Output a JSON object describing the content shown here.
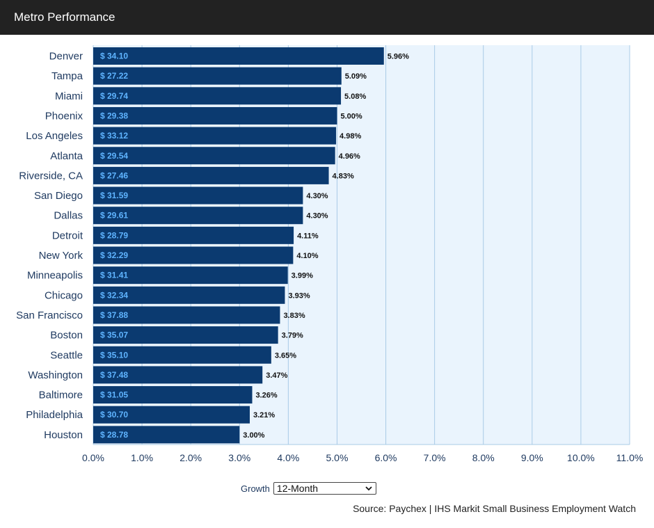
{
  "header": {
    "title": "Metro Performance"
  },
  "controls": {
    "growth_label": "Growth",
    "growth_selected": "12-Month"
  },
  "source": "Source: Paychex | IHS Markit Small Business Employment Watch",
  "colors": {
    "bar": "#0b3a70",
    "bar_label": "#5fb4ff",
    "plot_bg": "#eaf4fd",
    "grid": "#a9cbe6",
    "header_bg": "#222222"
  },
  "chart_data": {
    "type": "bar",
    "orientation": "horizontal",
    "title": "Metro Performance",
    "categories": [
      "Denver",
      "Tampa",
      "Miami",
      "Phoenix",
      "Los Angeles",
      "Atlanta",
      "Riverside, CA",
      "San Diego",
      "Dallas",
      "Detroit",
      "New York",
      "Minneapolis",
      "Chicago",
      "San Francisco",
      "Boston",
      "Seattle",
      "Washington",
      "Baltimore",
      "Philadelphia",
      "Houston"
    ],
    "values": [
      5.96,
      5.09,
      5.08,
      5.0,
      4.98,
      4.96,
      4.83,
      4.3,
      4.3,
      4.11,
      4.1,
      3.99,
      3.93,
      3.83,
      3.79,
      3.65,
      3.47,
      3.26,
      3.21,
      3.0
    ],
    "value_labels": [
      "5.96%",
      "5.09%",
      "5.08%",
      "5.00%",
      "4.98%",
      "4.96%",
      "4.83%",
      "4.30%",
      "4.30%",
      "4.11%",
      "4.10%",
      "3.99%",
      "3.93%",
      "3.83%",
      "3.79%",
      "3.65%",
      "3.47%",
      "3.26%",
      "3.21%",
      "3.00%"
    ],
    "bar_labels": [
      "$ 34.10",
      "$ 27.22",
      "$ 29.74",
      "$ 29.38",
      "$ 33.12",
      "$ 29.54",
      "$ 27.46",
      "$ 31.59",
      "$ 29.61",
      "$ 28.79",
      "$ 32.29",
      "$ 31.41",
      "$ 32.34",
      "$ 37.88",
      "$ 35.07",
      "$ 35.10",
      "$ 37.48",
      "$ 31.05",
      "$ 30.70",
      "$ 28.78"
    ],
    "xlim": [
      0,
      11
    ],
    "x_ticks": [
      "0.0%",
      "1.0%",
      "2.0%",
      "3.0%",
      "4.0%",
      "5.0%",
      "6.0%",
      "7.0%",
      "8.0%",
      "9.0%",
      "10.0%",
      "11.0%"
    ],
    "grid": true
  }
}
